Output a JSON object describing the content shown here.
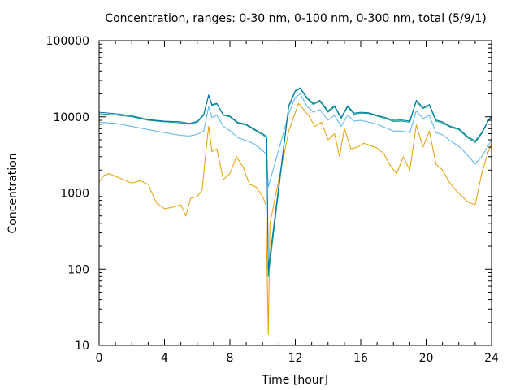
{
  "chart_data": {
    "type": "line",
    "title": "Concentration, ranges: 0-30 nm, 0-100 nm, 0-300 nm, total (5/9/1)",
    "xlabel": "Time [hour]",
    "ylabel": "Concentration",
    "xlim": [
      0,
      24
    ],
    "ylim": [
      10,
      100000
    ],
    "yscale": "log",
    "grid": false,
    "x_ticks": [
      0,
      4,
      8,
      12,
      16,
      20,
      24
    ],
    "x_tick_labels": [
      "0",
      "4",
      "8",
      "12",
      "16",
      "20",
      "24"
    ],
    "y_ticks": [
      10,
      100,
      1000,
      10000,
      100000
    ],
    "y_tick_labels": [
      "10",
      "100",
      "1000",
      "10000",
      "100000"
    ],
    "series": [
      {
        "color": "#e69f00",
        "points": [
          [
            0,
            1400
          ],
          [
            0.3,
            1700
          ],
          [
            0.6,
            1800
          ],
          [
            1,
            1650
          ],
          [
            1.5,
            1500
          ],
          [
            2,
            1350
          ],
          [
            2.5,
            1450
          ],
          [
            3,
            1300
          ],
          [
            3.5,
            750
          ],
          [
            4,
            620
          ],
          [
            4.5,
            650
          ],
          [
            5,
            700
          ],
          [
            5.3,
            500
          ],
          [
            5.6,
            850
          ],
          [
            6,
            900
          ],
          [
            6.3,
            1100
          ],
          [
            6.5,
            3000
          ],
          [
            6.7,
            7500
          ],
          [
            6.9,
            3500
          ],
          [
            7.2,
            3800
          ],
          [
            7.6,
            1500
          ],
          [
            8,
            1800
          ],
          [
            8.4,
            3000
          ],
          [
            8.8,
            2200
          ],
          [
            9.2,
            1300
          ],
          [
            9.6,
            1200
          ],
          [
            10,
            900
          ],
          [
            10.2,
            700
          ],
          [
            10.35,
            14
          ],
          [
            10.45,
            400
          ],
          [
            11.6,
            6500
          ],
          [
            11.9,
            10000
          ],
          [
            12.2,
            15000
          ],
          [
            12.5,
            12500
          ],
          [
            12.8,
            10500
          ],
          [
            13.2,
            7500
          ],
          [
            13.6,
            8500
          ],
          [
            14,
            5000
          ],
          [
            14.4,
            6000
          ],
          [
            14.7,
            3000
          ],
          [
            15,
            7000
          ],
          [
            15.4,
            3800
          ],
          [
            15.8,
            4000
          ],
          [
            16.2,
            4500
          ],
          [
            16.6,
            4200
          ],
          [
            17,
            3900
          ],
          [
            17.4,
            3300
          ],
          [
            17.8,
            2300
          ],
          [
            18.2,
            1800
          ],
          [
            18.6,
            3000
          ],
          [
            19,
            2000
          ],
          [
            19.4,
            7800
          ],
          [
            19.8,
            4000
          ],
          [
            20.2,
            6500
          ],
          [
            20.6,
            2400
          ],
          [
            21,
            2000
          ],
          [
            21.4,
            1400
          ],
          [
            21.8,
            1100
          ],
          [
            22.2,
            900
          ],
          [
            22.6,
            750
          ],
          [
            23,
            700
          ],
          [
            23.4,
            1800
          ],
          [
            23.8,
            3500
          ],
          [
            24,
            4500
          ]
        ]
      },
      {
        "color": "#56b4e9",
        "points": [
          [
            0,
            8500
          ],
          [
            1,
            8200
          ],
          [
            2,
            7500
          ],
          [
            3,
            6800
          ],
          [
            4,
            6200
          ],
          [
            5,
            5700
          ],
          [
            5.5,
            5600
          ],
          [
            6,
            5900
          ],
          [
            6.4,
            6500
          ],
          [
            6.7,
            13500
          ],
          [
            6.9,
            9800
          ],
          [
            7.2,
            10500
          ],
          [
            7.6,
            7500
          ],
          [
            8,
            6600
          ],
          [
            8.5,
            5300
          ],
          [
            9,
            4900
          ],
          [
            9.5,
            4400
          ],
          [
            10,
            3600
          ],
          [
            10.25,
            3200
          ],
          [
            10.35,
            1200
          ],
          [
            11.6,
            11000
          ],
          [
            12,
            18000
          ],
          [
            12.3,
            20000
          ],
          [
            12.7,
            14000
          ],
          [
            13.1,
            11500
          ],
          [
            13.5,
            12500
          ],
          [
            14,
            9000
          ],
          [
            14.4,
            10500
          ],
          [
            14.8,
            7500
          ],
          [
            15.2,
            10500
          ],
          [
            15.6,
            8800
          ],
          [
            16,
            9000
          ],
          [
            16.5,
            8500
          ],
          [
            17,
            8000
          ],
          [
            17.5,
            7200
          ],
          [
            18,
            6500
          ],
          [
            18.5,
            6500
          ],
          [
            19,
            6200
          ],
          [
            19.4,
            12000
          ],
          [
            19.8,
            9500
          ],
          [
            20.2,
            10500
          ],
          [
            20.6,
            6200
          ],
          [
            21,
            5800
          ],
          [
            21.5,
            4800
          ],
          [
            22,
            4100
          ],
          [
            22.5,
            3200
          ],
          [
            23,
            2400
          ],
          [
            23.4,
            3000
          ],
          [
            23.8,
            4200
          ],
          [
            24,
            5000
          ]
        ]
      },
      {
        "color": "#009e73",
        "points": [
          [
            0,
            11000
          ],
          [
            1,
            10600
          ],
          [
            2,
            10000
          ],
          [
            3,
            9000
          ],
          [
            4,
            8600
          ],
          [
            5,
            8300
          ],
          [
            5.5,
            8000
          ],
          [
            6,
            8500
          ],
          [
            6.4,
            10500
          ],
          [
            6.7,
            19000
          ],
          [
            6.9,
            14000
          ],
          [
            7.2,
            14800
          ],
          [
            7.6,
            10500
          ],
          [
            8,
            10000
          ],
          [
            8.5,
            8200
          ],
          [
            9,
            7800
          ],
          [
            9.5,
            6700
          ],
          [
            10,
            5800
          ],
          [
            10.25,
            5300
          ],
          [
            10.35,
            80
          ],
          [
            11.6,
            13500
          ],
          [
            12,
            21500
          ],
          [
            12.3,
            23500
          ],
          [
            12.7,
            17500
          ],
          [
            13.1,
            14500
          ],
          [
            13.5,
            16000
          ],
          [
            14,
            11500
          ],
          [
            14.4,
            13500
          ],
          [
            14.8,
            9500
          ],
          [
            15.2,
            13500
          ],
          [
            15.6,
            10800
          ],
          [
            16,
            11200
          ],
          [
            16.5,
            11000
          ],
          [
            17,
            10200
          ],
          [
            17.5,
            9500
          ],
          [
            18,
            8700
          ],
          [
            18.5,
            8800
          ],
          [
            19,
            8500
          ],
          [
            19.4,
            16000
          ],
          [
            19.8,
            12800
          ],
          [
            20.2,
            14000
          ],
          [
            20.6,
            8800
          ],
          [
            21,
            8300
          ],
          [
            21.5,
            7300
          ],
          [
            22,
            6800
          ],
          [
            22.5,
            5400
          ],
          [
            23,
            4600
          ],
          [
            23.4,
            6000
          ],
          [
            23.8,
            8800
          ],
          [
            24,
            10000
          ]
        ]
      },
      {
        "color": "#0072b2",
        "points": [
          [
            0,
            11500
          ],
          [
            1,
            11000
          ],
          [
            2,
            10300
          ],
          [
            3,
            9200
          ],
          [
            4,
            8800
          ],
          [
            5,
            8600
          ],
          [
            5.5,
            8200
          ],
          [
            6,
            8700
          ],
          [
            6.4,
            10800
          ],
          [
            6.7,
            19500
          ],
          [
            6.9,
            14500
          ],
          [
            7.2,
            15000
          ],
          [
            7.6,
            10700
          ],
          [
            8,
            10200
          ],
          [
            8.5,
            8400
          ],
          [
            9,
            8000
          ],
          [
            9.5,
            6900
          ],
          [
            10,
            6000
          ],
          [
            10.25,
            5500
          ],
          [
            10.35,
            100
          ],
          [
            11.6,
            14000
          ],
          [
            12,
            22000
          ],
          [
            12.3,
            24000
          ],
          [
            12.7,
            18000
          ],
          [
            13.1,
            15000
          ],
          [
            13.5,
            16500
          ],
          [
            14,
            12000
          ],
          [
            14.4,
            14000
          ],
          [
            14.8,
            9800
          ],
          [
            15.2,
            14000
          ],
          [
            15.6,
            11200
          ],
          [
            16,
            11500
          ],
          [
            16.5,
            11300
          ],
          [
            17,
            10500
          ],
          [
            17.5,
            9800
          ],
          [
            18,
            9000
          ],
          [
            18.5,
            9100
          ],
          [
            19,
            8800
          ],
          [
            19.4,
            16500
          ],
          [
            19.8,
            13200
          ],
          [
            20.2,
            14500
          ],
          [
            20.6,
            9100
          ],
          [
            21,
            8600
          ],
          [
            21.5,
            7500
          ],
          [
            22,
            7000
          ],
          [
            22.5,
            5600
          ],
          [
            23,
            4800
          ],
          [
            23.4,
            6200
          ],
          [
            23.8,
            9000
          ],
          [
            24,
            10200
          ]
        ]
      }
    ]
  }
}
